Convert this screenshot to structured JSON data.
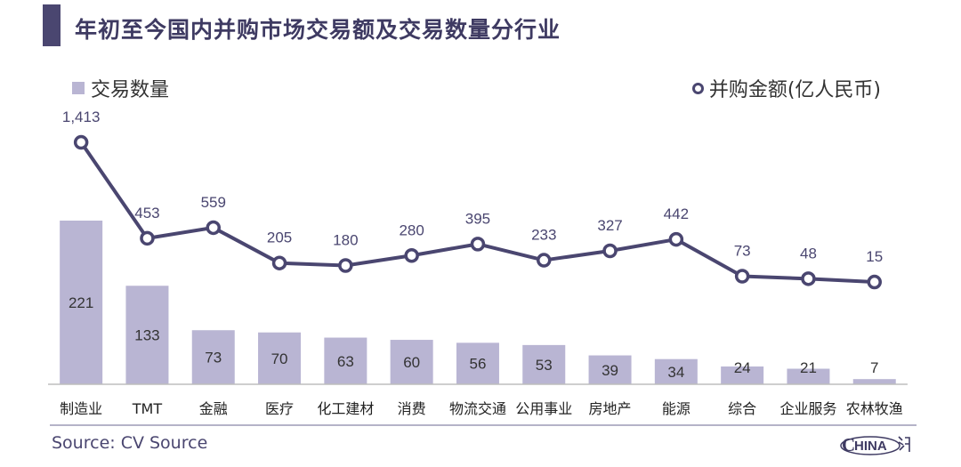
{
  "title": "年初至今国内并购市场交易额及交易数量分行业",
  "legend": {
    "bar_label": "交易数量",
    "line_label": "并购金额(亿人民币)"
  },
  "source": "Source: CV Source",
  "logo_text": "HINA",
  "colors": {
    "bar": "#b9b5d3",
    "line": "#4a4670",
    "accent": "#3e3a62"
  },
  "chart_data": {
    "type": "bar+line",
    "categories": [
      "制造业",
      "TMT",
      "金融",
      "医疗",
      "化工建材",
      "消费",
      "物流交通",
      "公用事业",
      "房地产",
      "能源",
      "综合",
      "企业服务",
      "农林牧渔"
    ],
    "series": [
      {
        "name": "交易数量",
        "type": "bar",
        "values": [
          221,
          133,
          73,
          70,
          63,
          60,
          56,
          53,
          39,
          34,
          24,
          21,
          7
        ]
      },
      {
        "name": "并购金额(亿人民币)",
        "type": "line",
        "values": [
          1413,
          453,
          559,
          205,
          180,
          280,
          395,
          233,
          327,
          442,
          73,
          48,
          15
        ],
        "labels": [
          "1,413",
          "453",
          "559",
          "205",
          "180",
          "280",
          "395",
          "233",
          "327",
          "442",
          "73",
          "48",
          "15"
        ]
      }
    ],
    "title": "年初至今国内并购市场交易额及交易数量分行业"
  }
}
